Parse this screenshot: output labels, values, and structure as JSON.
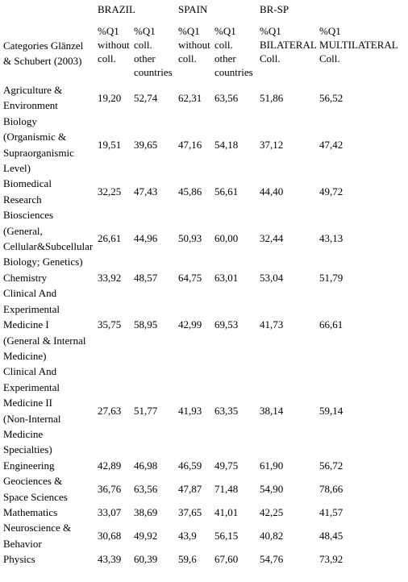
{
  "header": {
    "groups": [
      "BRAZIL",
      "SPAIN",
      "BR-SP"
    ],
    "category_label": [
      "Categories Glänzel",
      "& Schubert (2003)"
    ],
    "columns": [
      [
        "%Q1",
        "without",
        "coll."
      ],
      [
        "%Q1",
        "coll.",
        "other",
        "countries"
      ],
      [
        "%Q1",
        "without",
        "coll."
      ],
      [
        "%Q1",
        "coll.",
        "other",
        "countries"
      ],
      [
        "%Q1",
        "BILATERAL",
        "Coll."
      ],
      [
        "%Q1",
        "MULTILATERAL",
        "Coll."
      ]
    ]
  },
  "rows": [
    {
      "category": [
        "Agriculture &",
        "Environment"
      ],
      "values": [
        "19,20",
        "52,74",
        "62,31",
        "63,56",
        "51,86",
        "56,52"
      ]
    },
    {
      "category": [
        "Biology",
        "(Organismic &",
        "Supraorganismic",
        "Level)"
      ],
      "values": [
        "19,51",
        "39,65",
        "47,16",
        "54,18",
        "37,12",
        "47,42"
      ]
    },
    {
      "category": [
        "Biomedical",
        "Research"
      ],
      "values": [
        "32,25",
        "47,43",
        "45,86",
        "56,61",
        "44,40",
        "49,72"
      ]
    },
    {
      "category": [
        "Biosciences",
        "(General,",
        "Cellular&Subcellular",
        " Biology; Genetics)"
      ],
      "values": [
        "26,61",
        "44,96",
        "50,93",
        "60,00",
        "32,44",
        "43,13"
      ]
    },
    {
      "category": [
        "Chemistry"
      ],
      "values": [
        "33,92",
        "48,57",
        "64,75",
        "63,01",
        "53,04",
        "51,79"
      ]
    },
    {
      "category": [
        "Clinical And",
        "Experimental",
        "Medicine I",
        "(General & Internal",
        "Medicine)"
      ],
      "values": [
        "35,75",
        "58,95",
        "42,99",
        "69,53",
        "41,73",
        "66,61"
      ]
    },
    {
      "category": [
        "Clinical And",
        "Experimental",
        "Medicine II",
        "(Non-Internal",
        "Medicine",
        "Specialties)"
      ],
      "values": [
        "27,63",
        "51,77",
        "41,93",
        "63,35",
        "38,14",
        "59,14"
      ]
    },
    {
      "category": [
        "Engineering"
      ],
      "values": [
        "42,89",
        "46,98",
        "46,59",
        "49,75",
        "61,90",
        "56,72"
      ]
    },
    {
      "category": [
        "Geociences &",
        "Space Sciences"
      ],
      "values": [
        "36,76",
        "63,56",
        "47,87",
        "71,48",
        "54,90",
        "78,66"
      ]
    },
    {
      "category": [
        "Mathematics"
      ],
      "values": [
        "33,07",
        "38,69",
        "37,65",
        "41,01",
        "42,25",
        "41,57"
      ]
    },
    {
      "category": [
        "Neuroscience &",
        "Behavior"
      ],
      "values": [
        "30,68",
        "49,92",
        "43,9",
        "56,15",
        "40,82",
        "48,45"
      ]
    },
    {
      "category": [
        "Physics"
      ],
      "values": [
        "43,39",
        "60,39",
        "59,6",
        "67,60",
        "54,76",
        "73,92"
      ]
    }
  ]
}
